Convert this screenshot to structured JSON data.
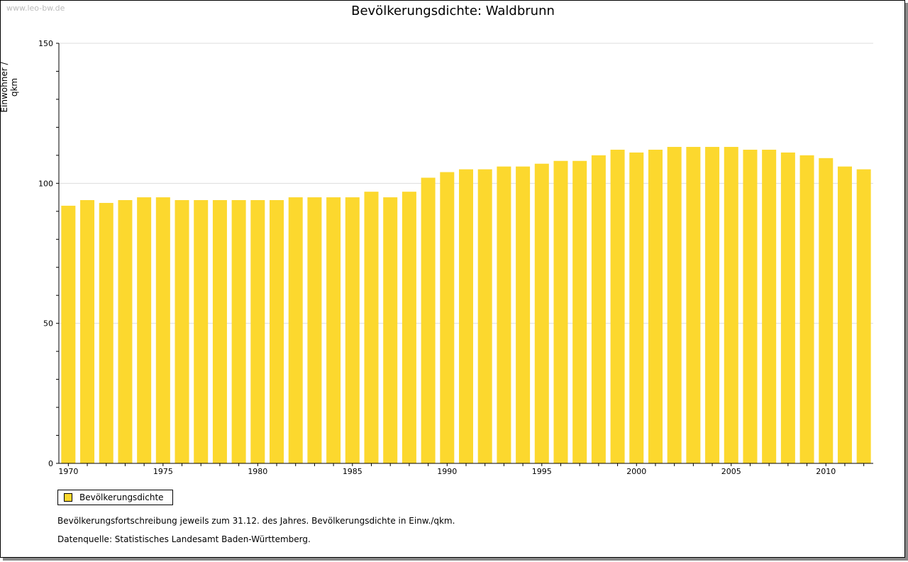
{
  "watermark": "www.leo-bw.de",
  "chart_data": {
    "type": "bar",
    "title": "Bevölkerungsdichte: Waldbrunn",
    "xlabel": "",
    "ylabel": "Einwohner / qkm",
    "ylim": [
      0,
      150
    ],
    "yticks": [
      0,
      50,
      100,
      150
    ],
    "xtick_labels": [
      "1970",
      "1975",
      "1980",
      "1985",
      "1990",
      "1995",
      "2000",
      "2005",
      "2010"
    ],
    "categories": [
      1970,
      1971,
      1972,
      1973,
      1974,
      1975,
      1976,
      1977,
      1978,
      1979,
      1980,
      1981,
      1982,
      1983,
      1984,
      1985,
      1986,
      1987,
      1988,
      1989,
      1990,
      1991,
      1992,
      1993,
      1994,
      1995,
      1996,
      1997,
      1998,
      1999,
      2000,
      2001,
      2002,
      2003,
      2004,
      2005,
      2006,
      2007,
      2008,
      2009,
      2010,
      2011,
      2012
    ],
    "series": [
      {
        "name": "Bevölkerungsdichte",
        "color": "#fcd82e",
        "values": [
          92,
          94,
          93,
          94,
          95,
          95,
          94,
          94,
          94,
          94,
          94,
          94,
          95,
          95,
          95,
          95,
          97,
          95,
          97,
          102,
          104,
          105,
          105,
          106,
          106,
          107,
          108,
          108,
          110,
          112,
          111,
          112,
          113,
          113,
          113,
          113,
          112,
          112,
          111,
          110,
          109,
          106,
          105
        ]
      }
    ],
    "legend": "bottom-left",
    "grid": true
  },
  "notes": [
    "Bevölkerungsfortschreibung jeweils zum 31.12. des Jahres. Bevölkerungsdichte in Einw./qkm.",
    "Datenquelle: Statistisches Landesamt Baden-Württemberg."
  ]
}
